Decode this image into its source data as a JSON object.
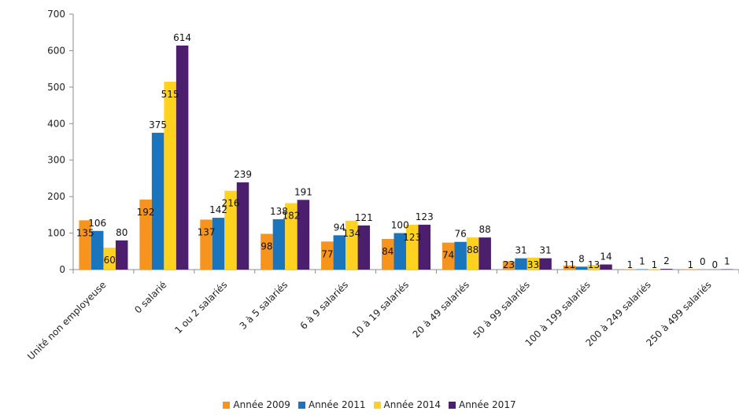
{
  "chart_data": {
    "type": "bar",
    "categories": [
      "Unité non employeuse",
      "0 salarié",
      "1 ou 2 salariés",
      "3 à 5 salariés",
      "6 à 9 salariés",
      "10 à 19 salariés",
      "20 à 49 salariés",
      "50 à 99 salariés",
      "100 à 199 salariés",
      "200 à 249 salariés",
      "250 à 499 salariés"
    ],
    "series": [
      {
        "name": "Année 2009",
        "color": "#f7941d",
        "values": [
          135,
          192,
          137,
          98,
          77,
          84,
          74,
          23,
          11,
          1,
          1
        ]
      },
      {
        "name": "Année 2011",
        "color": "#1b75bc",
        "values": [
          106,
          375,
          142,
          138,
          94,
          100,
          76,
          31,
          8,
          1,
          0
        ]
      },
      {
        "name": "Année 2014",
        "color": "#ffd21f",
        "values": [
          60,
          515,
          216,
          182,
          134,
          123,
          88,
          33,
          13,
          1,
          0
        ]
      },
      {
        "name": "Année 2017",
        "color": "#4b1e6e",
        "values": [
          80,
          614,
          239,
          191,
          121,
          123,
          88,
          31,
          14,
          2,
          1
        ]
      }
    ],
    "yticks": [
      0,
      100,
      200,
      300,
      400,
      500,
      600,
      700
    ],
    "ylim": [
      0,
      700
    ],
    "grid": false,
    "legend_position": "bottom"
  }
}
